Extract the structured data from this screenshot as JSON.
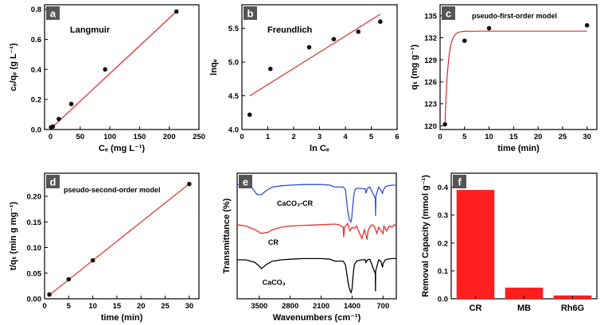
{
  "colors": {
    "fit": "#dd2b2b",
    "bar": "#ff1f1f",
    "spectrum_caco3_cr": "#2f4fd8",
    "spectrum_cr": "#e8302d",
    "spectrum_caco3": "#000000",
    "label_bg": "#555555",
    "marker": "#111111"
  },
  "chart_data": [
    {
      "panel": "a",
      "type": "scatter",
      "annotation": "Langmuir",
      "xlabel": "Cₑ (mg L⁻¹)",
      "ylabel": "cₑ/qₑ (g L⁻¹)",
      "xlim": [
        -10,
        250
      ],
      "ylim": [
        0.0,
        0.83
      ],
      "xticks": [
        0,
        50,
        100,
        150,
        200,
        250
      ],
      "xtick_labels": [
        "0",
        "50",
        "100",
        "150",
        "200",
        "250"
      ],
      "yticks": [
        0.0,
        0.2,
        0.4,
        0.6,
        0.8
      ],
      "ytick_labels": [
        "0.0",
        "0.2",
        "0.4",
        "0.6",
        "0.8"
      ],
      "points": {
        "x": [
          1,
          4,
          14,
          35,
          92,
          212
        ],
        "y": [
          0.015,
          0.02,
          0.07,
          0.17,
          0.4,
          0.785
        ]
      },
      "fit": {
        "type": "linear",
        "x": [
          0,
          212
        ],
        "y": [
          0.004,
          0.785
        ]
      }
    },
    {
      "panel": "b",
      "type": "scatter",
      "annotation": "Freundlich",
      "xlabel": "ln Cₑ",
      "ylabel": "lnqₑ",
      "xlim": [
        0,
        6
      ],
      "ylim": [
        4.0,
        5.85
      ],
      "xticks": [
        0,
        1,
        2,
        3,
        4,
        5,
        6
      ],
      "xtick_labels": [
        "0",
        "1",
        "2",
        "3",
        "4",
        "5",
        "6"
      ],
      "yticks": [
        4.0,
        4.5,
        5.0,
        5.5
      ],
      "ytick_labels": [
        "4.0",
        "4.5",
        "5.0",
        "5.5"
      ],
      "points": {
        "x": [
          0.3,
          1.1,
          2.6,
          3.55,
          4.5,
          5.35
        ],
        "y": [
          4.22,
          4.9,
          5.22,
          5.34,
          5.45,
          5.6
        ]
      },
      "fit": {
        "type": "linear",
        "x": [
          0.3,
          5.35
        ],
        "y": [
          4.5,
          5.71
        ]
      }
    },
    {
      "panel": "c",
      "type": "scatter",
      "annotation": "pseudo-first-order model",
      "xlabel": "time (min)",
      "ylabel": "qₜ (mg g⁻¹)",
      "xlim": [
        0,
        32
      ],
      "ylim": [
        119.5,
        136.5
      ],
      "xticks": [
        0,
        5,
        10,
        15,
        20,
        25,
        30
      ],
      "xtick_labels": [
        "0",
        "5",
        "10",
        "15",
        "20",
        "25",
        "30"
      ],
      "yticks": [
        120,
        123,
        126,
        129,
        132,
        135
      ],
      "ytick_labels": [
        "120",
        "123",
        "126",
        "129",
        "132",
        "135"
      ],
      "points": {
        "x": [
          1,
          5,
          10,
          30
        ],
        "y": [
          120.2,
          131.6,
          133.3,
          133.7
        ]
      },
      "fit": {
        "type": "pseudo-first-order",
        "qe": 132.9,
        "q0": 120.2,
        "t0": 1,
        "k": 1.6,
        "x_range": [
          1,
          30
        ]
      }
    },
    {
      "panel": "d",
      "type": "scatter",
      "annotation": "pseudo-second-order model",
      "xlabel": "time (min)",
      "ylabel": "t/qₜ (min g mg⁻¹)",
      "xlim": [
        0,
        32
      ],
      "ylim": [
        0.0,
        0.245
      ],
      "xticks": [
        0,
        5,
        10,
        15,
        20,
        25,
        30
      ],
      "xtick_labels": [
        "0",
        "5",
        "10",
        "15",
        "20",
        "25",
        "30"
      ],
      "yticks": [
        0.0,
        0.05,
        0.1,
        0.15,
        0.2
      ],
      "ytick_labels": [
        "0.00",
        "0.05",
        "0.10",
        "0.15",
        "0.20"
      ],
      "points": {
        "x": [
          1,
          5,
          10,
          30
        ],
        "y": [
          0.0083,
          0.038,
          0.075,
          0.224
        ]
      },
      "fit": {
        "type": "linear",
        "x": [
          1,
          30
        ],
        "y": [
          0.0075,
          0.2245
        ]
      }
    },
    {
      "panel": "e",
      "type": "line",
      "xlabel": "Wavenumbers (cm⁻¹)",
      "ylabel": "Transmittance (%)",
      "xlim": [
        4000,
        400
      ],
      "ylim": [
        0,
        100
      ],
      "xticks": [
        3500,
        2800,
        2100,
        1400,
        700
      ],
      "xtick_labels": [
        "3500",
        "2800",
        "2100",
        "1400",
        "700"
      ],
      "series": [
        {
          "name": "CaCO₃-CR",
          "color_key": "spectrum_caco3_cr",
          "label_pos": [
            3100,
            74
          ],
          "x": [
            4000,
            3800,
            3650,
            3550,
            3450,
            3350,
            3200,
            3000,
            2800,
            2500,
            2100,
            1900,
            1800,
            1600,
            1550,
            1500,
            1460,
            1430,
            1410,
            1390,
            1360,
            1330,
            1300,
            1200,
            1100,
            1087,
            1050,
            1000,
            876,
            870,
            860,
            800,
            760,
            712,
            700,
            650,
            600,
            500,
            400
          ],
          "y": [
            91,
            91,
            88,
            83,
            83,
            86,
            89,
            90,
            90.5,
            91,
            91,
            90.5,
            89,
            89,
            87,
            70,
            63,
            61,
            64,
            72,
            83,
            87,
            88,
            88,
            87.5,
            84,
            88,
            89,
            80,
            66,
            82,
            89,
            87,
            84,
            86,
            89,
            90,
            90.5,
            90.5
          ]
        },
        {
          "name": "CR",
          "color_key": "spectrum_cr",
          "label_pos": [
            3300,
            43
          ],
          "x": [
            4000,
            3800,
            3600,
            3450,
            3300,
            3200,
            3000,
            2800,
            2500,
            2100,
            1800,
            1700,
            1600,
            1590,
            1570,
            1500,
            1450,
            1400,
            1360,
            1300,
            1230,
            1180,
            1120,
            1060,
            1040,
            1000,
            950,
            900,
            840,
            800,
            760,
            700,
            680,
            620,
            560,
            500,
            450,
            400
          ],
          "y": [
            59,
            58,
            55,
            52,
            53,
            55,
            57,
            58,
            58.5,
            59,
            59.5,
            59,
            57,
            49,
            57,
            60,
            54,
            57,
            56,
            58,
            52,
            48,
            55,
            47,
            54,
            57,
            59,
            58,
            52,
            57,
            55,
            52,
            58,
            54,
            58,
            57,
            59,
            58
          ]
        },
        {
          "name": "CaCO₃",
          "color_key": "spectrum_caco3",
          "label_pos": [
            3430,
            11
          ],
          "x": [
            4000,
            3800,
            3600,
            3500,
            3450,
            3350,
            3200,
            3000,
            2800,
            2500,
            2100,
            1900,
            1800,
            1600,
            1550,
            1500,
            1470,
            1440,
            1420,
            1400,
            1380,
            1350,
            1300,
            1200,
            1100,
            1087,
            1050,
            1000,
            876,
            872,
            868,
            800,
            750,
            712,
            700,
            650,
            600,
            500,
            400
          ],
          "y": [
            31,
            31,
            29,
            26,
            24,
            27,
            30,
            31,
            31.5,
            32,
            32,
            31.5,
            30,
            30,
            27,
            15,
            9,
            6,
            5,
            8,
            18,
            27,
            30,
            31,
            31,
            29,
            31,
            31.5,
            20,
            6,
            22,
            31,
            30,
            25,
            28,
            31,
            31.5,
            32,
            32
          ]
        }
      ]
    },
    {
      "panel": "f",
      "type": "bar",
      "xlabel": "",
      "ylabel": "Removal Capacity (mmol g⁻¹)",
      "categories": [
        "CR",
        "MB",
        "Rh6G"
      ],
      "values": [
        0.39,
        0.04,
        0.012
      ],
      "ylim": [
        0.0,
        0.45
      ],
      "yticks": [
        0.0,
        0.1,
        0.2,
        0.3,
        0.4
      ],
      "ytick_labels": [
        "0.0",
        "0.1",
        "0.2",
        "0.3",
        "0.4"
      ]
    }
  ]
}
